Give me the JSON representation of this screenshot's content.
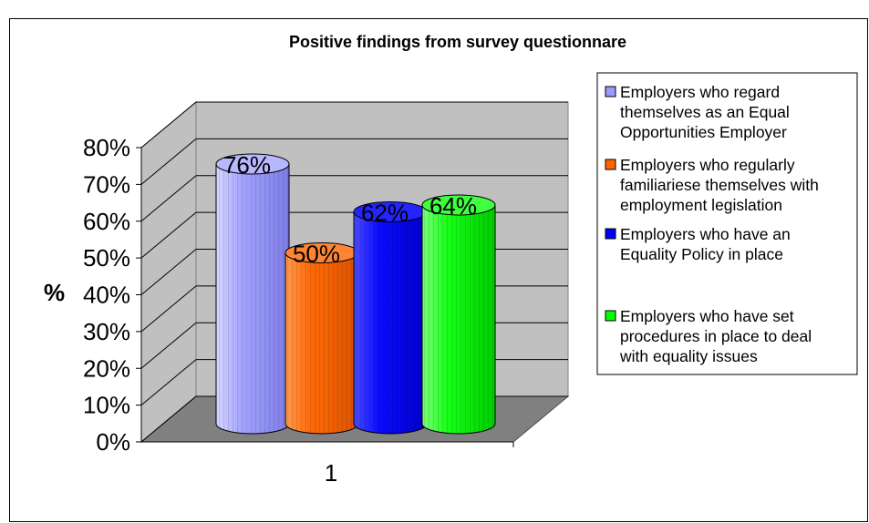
{
  "chart_data": {
    "type": "bar",
    "title": "Positive findings from survey questionnare",
    "ylabel": "%",
    "xlabel": "",
    "categories": [
      "1"
    ],
    "ylim": [
      0,
      80
    ],
    "yticks": [
      "0%",
      "10%",
      "20%",
      "30%",
      "40%",
      "50%",
      "60%",
      "70%",
      "80%"
    ],
    "grid": true,
    "style": "3d-cylinder",
    "legend_position": "right",
    "series": [
      {
        "name": "Employers who regard themselves as an Equal Opportunities Employer",
        "values": [
          76
        ],
        "label": "76%",
        "color": "#9999ff",
        "legend_lines": [
          "Employers who regard",
          "themselves as an Equal",
          "Opportunities Employer"
        ]
      },
      {
        "name": "Employers who regularly familiariese themselves with employment legislation",
        "values": [
          50
        ],
        "label": "50%",
        "color": "#ff6600",
        "legend_lines": [
          "Employers who regularly",
          "familiariese themselves with",
          "employment legislation"
        ]
      },
      {
        "name": "Employers who have an Equality Policy in place",
        "values": [
          62
        ],
        "label": "62%",
        "color": "#0000ff",
        "legend_lines": [
          "Employers who have an",
          "Equality Policy in place"
        ]
      },
      {
        "name": "Employers who have set procedures in place to deal with equality issues",
        "values": [
          64
        ],
        "label": "64%",
        "color": "#00ff00",
        "legend_lines": [
          "Employers who have set",
          "procedures in place to deal",
          "with equality issues"
        ]
      }
    ]
  }
}
